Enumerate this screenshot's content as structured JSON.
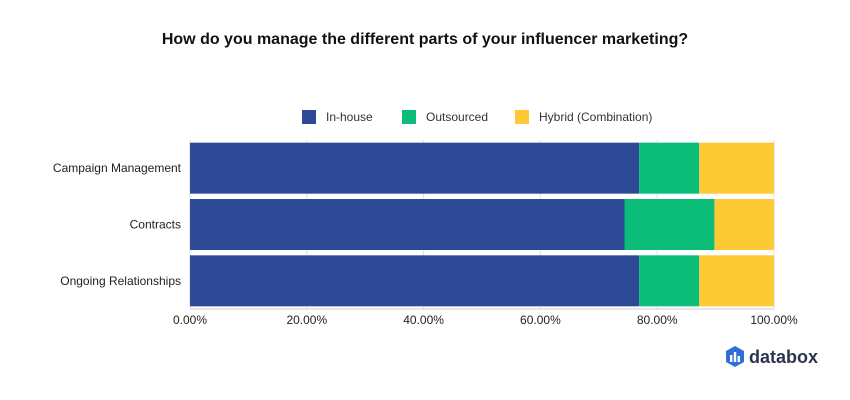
{
  "chart_data": {
    "type": "bar",
    "orientation": "horizontal",
    "stacked": true,
    "title": "How do you manage the different parts of your influencer marketing?",
    "categories": [
      "Campaign Management",
      "Contracts",
      "Ongoing Relationships"
    ],
    "series": [
      {
        "name": "In-house",
        "color": "#2e4a96",
        "values": [
          76.9,
          74.4,
          76.9
        ]
      },
      {
        "name": "Outsourced",
        "color": "#0bbd79",
        "values": [
          10.3,
          15.4,
          10.3
        ]
      },
      {
        "name": "Hybrid (Combination)",
        "color": "#fdc935",
        "values": [
          12.8,
          10.2,
          12.8
        ]
      }
    ],
    "xlim": [
      0,
      100
    ],
    "x_ticks": [
      "0.00%",
      "20.00%",
      "40.00%",
      "60.00%",
      "80.00%",
      "100.00%"
    ],
    "grid": true,
    "legend_position": "top"
  },
  "brand": {
    "name": "databox",
    "icon": "databox-logo-icon"
  }
}
